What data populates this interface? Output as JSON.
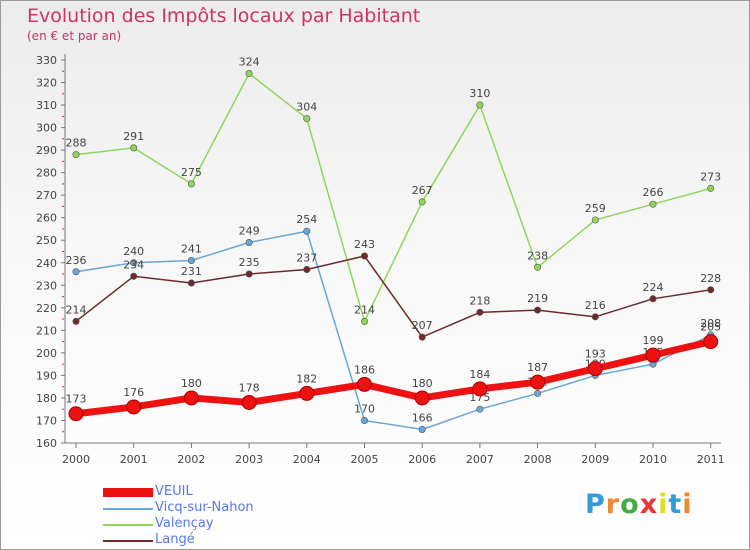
{
  "header": {
    "title": "Evolution des Impôts locaux par Habitant",
    "subtitle": "(en € et par an)"
  },
  "logo": {
    "text": "Proxiti",
    "colors": [
      "#3399dd",
      "#ee8833",
      "#44aa44",
      "#ee3333",
      "#dddd22",
      "#3399dd",
      "#ee8833"
    ]
  },
  "chart_data": {
    "type": "line",
    "title": "Evolution des Impôts locaux par Habitant",
    "subtitle": "(en € et par an)",
    "xlabel": "",
    "ylabel": "",
    "x": [
      "2000",
      "2001",
      "2002",
      "2003",
      "2004",
      "2005",
      "2006",
      "2007",
      "2008",
      "2009",
      "2010",
      "2011"
    ],
    "ylim": [
      160,
      330
    ],
    "yticks": [
      160,
      170,
      180,
      190,
      200,
      210,
      220,
      230,
      240,
      250,
      260,
      270,
      280,
      290,
      300,
      310,
      320,
      330
    ],
    "grid": false,
    "legend": "bottom-left",
    "series": [
      {
        "name": "Valençay",
        "color": "#8fd65a",
        "values": [
          288,
          291,
          275,
          324,
          304,
          214,
          267,
          310,
          238,
          259,
          266,
          273
        ],
        "labels": [
          "288",
          "291",
          "275",
          "324",
          "304",
          "214",
          "267",
          "310",
          "238",
          "259",
          "266",
          "273"
        ]
      },
      {
        "name": "Vicq-sur-Nahon",
        "color": "#6aa6d6",
        "values": [
          236,
          240,
          241,
          249,
          254,
          170,
          166,
          175,
          182,
          190,
          195,
          208
        ],
        "labels": [
          "236",
          "240",
          "241",
          "249",
          "254",
          "170",
          "166",
          "175",
          "182",
          "190",
          "195",
          "208"
        ]
      },
      {
        "name": "Langé",
        "color": "#6e2a2a",
        "values": [
          214,
          234,
          231,
          235,
          237,
          243,
          207,
          218,
          219,
          216,
          224,
          228
        ],
        "labels": [
          "214",
          "234",
          "231",
          "235",
          "237",
          "243",
          "207",
          "218",
          "219",
          "216",
          "224",
          "228"
        ]
      },
      {
        "name": "VEUIL",
        "color": "#ee1111",
        "values": [
          173,
          176,
          180,
          178,
          182,
          186,
          180,
          184,
          187,
          193,
          199,
          205
        ],
        "labels": [
          "173",
          "176",
          "180",
          "178",
          "182",
          "186",
          "180",
          "184",
          "187",
          "193",
          "199",
          "205"
        ]
      }
    ]
  },
  "legend_items": [
    {
      "name": "VEUIL",
      "color": "#ee1111",
      "thick": true
    },
    {
      "name": "Vicq-sur-Nahon",
      "color": "#6aa6d6",
      "thick": false
    },
    {
      "name": "Valençay",
      "color": "#8fd65a",
      "thick": false
    },
    {
      "name": "Langé",
      "color": "#6e2a2a",
      "thick": false
    }
  ]
}
